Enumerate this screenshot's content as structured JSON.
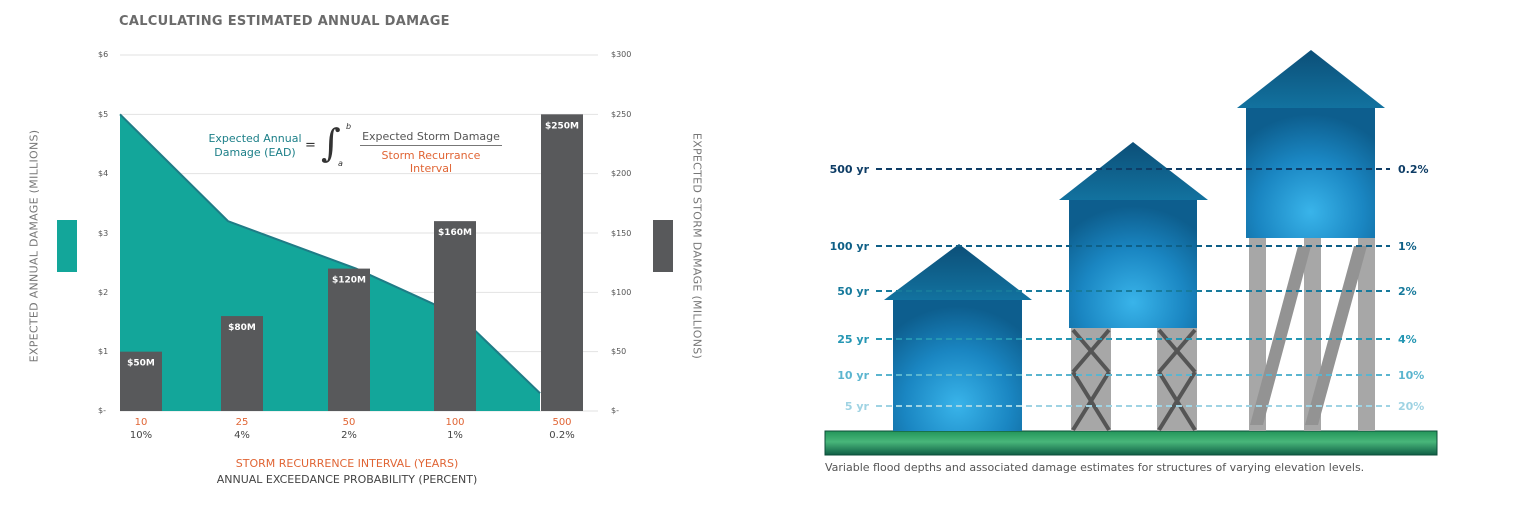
{
  "title": "CALCULATING ESTIMATED ANNUAL DAMAGE",
  "colors": {
    "area": "#13a69a",
    "area_line": "#1f7c86",
    "bar": "#58595b",
    "orange": "#e06535",
    "ground_top": "#1b8a46",
    "ground_bottom": "#0e5c45"
  },
  "chart_data": [
    {
      "type": "area+bar (dual axis)",
      "title": "CALCULATING ESTIMATED ANNUAL DAMAGE",
      "categories": [
        "10",
        "25",
        "50",
        "100",
        "500"
      ],
      "categories_secondary": [
        "10%",
        "4%",
        "2%",
        "1%",
        "0.2%"
      ],
      "xlabel": "STORM RECURRENCE INTERVAL (YEARS)",
      "xlabel_secondary": "ANNUAL EXCEEDANCE PROBABILITY (PERCENT)",
      "ylabel": "EXPECTED ANNUAL DAMAGE (MILLIONS)",
      "ylabel_right": "EXPECTED STORM DAMAGE (MILLIONS)",
      "ylim": [
        0,
        6
      ],
      "ylim_right": [
        0,
        300
      ],
      "yticks_left": [
        "$-",
        "$1",
        "$2",
        "$3",
        "$4",
        "$5",
        "$6"
      ],
      "yticks_right": [
        "$-",
        "$50",
        "$100",
        "$150",
        "$200",
        "$250",
        "$300"
      ],
      "series": [
        {
          "name": "Expected Annual Damage (EAD)",
          "type": "area",
          "axis": "left",
          "points": [
            [
              10,
              5.0
            ],
            [
              25,
              3.2
            ],
            [
              50,
              2.4
            ],
            [
              100,
              1.6
            ],
            [
              500,
              0.3
            ]
          ]
        },
        {
          "name": "Expected Storm Damage",
          "type": "bar",
          "axis": "right",
          "values": [
            50,
            80,
            120,
            160,
            250
          ],
          "labels": [
            "$50M",
            "$80M",
            "$120M",
            "$160M",
            "$250M"
          ]
        }
      ],
      "formula": {
        "lhs_line1": "Expected Annual",
        "lhs_line2": "Damage (EAD)",
        "equals": "=",
        "integral": "∫",
        "lower": "a",
        "upper": "b",
        "numerator": "Expected Storm Damage",
        "denominator": "Storm Recurrance Interval"
      },
      "grid": true
    }
  ],
  "diagram": {
    "return_periods": [
      {
        "left": "500 yr",
        "right": "0.2%",
        "color": "#0e3d66"
      },
      {
        "left": "100 yr",
        "right": "1%",
        "color": "#0e5f86"
      },
      {
        "left": "50 yr",
        "right": "2%",
        "color": "#177a9c"
      },
      {
        "left": "25 yr",
        "right": "4%",
        "color": "#2496b3"
      },
      {
        "left": "10 yr",
        "right": "10%",
        "color": "#5bb5cf"
      },
      {
        "left": "5 yr",
        "right": "20%",
        "color": "#9fd3e3"
      }
    ],
    "caption": "Variable flood depths and associated damage estimates for structures of varying elevation levels."
  }
}
